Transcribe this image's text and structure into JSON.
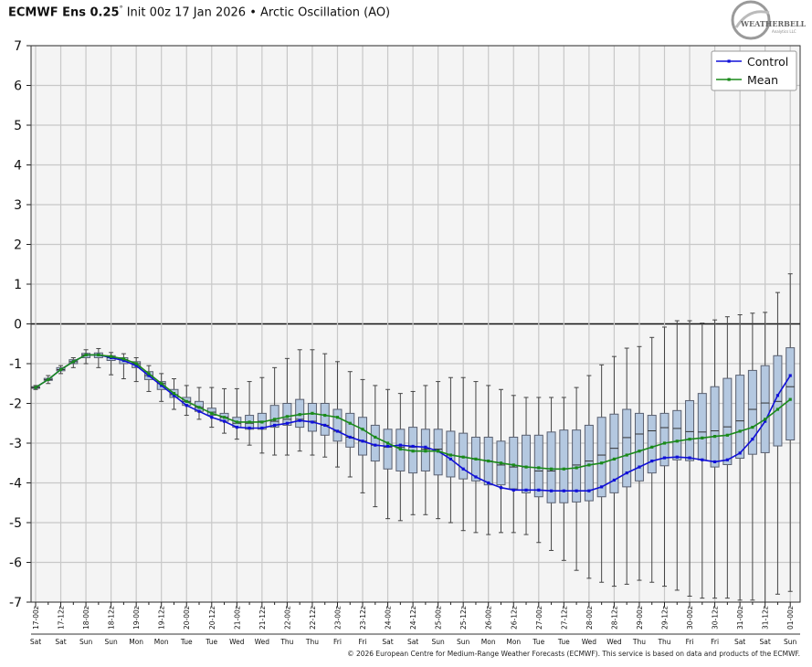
{
  "header": {
    "model": "ECMWF Ens 0.25",
    "degree": "°",
    "init": "Init 00z 17 Jan 2026",
    "bullet": "•",
    "index": "Arctic Oscillation (AO)"
  },
  "logo": {
    "text": "WEATHERBELL",
    "sub": "Analytics LLC"
  },
  "footer": "© 2026 European Centre for Medium-Range Weather Forecasts (ECMWF). This service is based on data and products of the ECMWF.",
  "colors": {
    "control": "#1010d8",
    "mean": "#1a8a1a",
    "box_fill": "#b4c8e0",
    "box_stroke": "#5a6070",
    "plot_bg": "#f4f4f4",
    "grid": "#c8c8c8"
  },
  "chart_data": {
    "type": "boxplot-line",
    "title": "ECMWF Ens 0.25° Init 00z 17 Jan 2026 • Arctic Oscillation (AO)",
    "ylim": [
      -7,
      7
    ],
    "yticks": [
      7,
      6,
      5,
      4,
      3,
      2,
      1,
      0,
      -1,
      -2,
      -3,
      -4,
      -5,
      -6,
      -7
    ],
    "grid": true,
    "legend": {
      "placement": "top-right",
      "entries": [
        "Control",
        "Mean"
      ]
    },
    "x_step_hours": 6,
    "x_labels": [
      "17-00z",
      "17-12z",
      "18-00z",
      "18-12z",
      "19-00z",
      "19-12z",
      "20-00z",
      "20-12z",
      "21-00z",
      "21-12z",
      "22-00z",
      "22-12z",
      "23-00z",
      "23-12z",
      "24-00z",
      "24-12z",
      "25-00z",
      "25-12z",
      "26-00z",
      "26-12z",
      "27-00z",
      "27-12z",
      "28-00z",
      "28-12z",
      "29-00z",
      "29-12z",
      "30-00z",
      "30-12z",
      "31-00z",
      "31-12z",
      "01-00z"
    ],
    "day_labels": [
      "Sat",
      "Sat",
      "Sun",
      "Sun",
      "Mon",
      "Mon",
      "Tue",
      "Tue",
      "Wed",
      "Wed",
      "Thu",
      "Thu",
      "Fri",
      "Fri",
      "Sat",
      "Sat",
      "Sun",
      "Sun",
      "Mon",
      "Mon",
      "Tue",
      "Tue",
      "Wed",
      "Wed",
      "Thu",
      "Thu",
      "Fri",
      "Fri",
      "Sat",
      "Sat",
      "Sun"
    ],
    "series": [
      {
        "name": "Control",
        "values": [
          -1.6,
          -1.4,
          -1.15,
          -0.95,
          -0.78,
          -0.78,
          -0.85,
          -0.92,
          -1.05,
          -1.3,
          -1.55,
          -1.8,
          -2.05,
          -2.2,
          -2.35,
          -2.45,
          -2.6,
          -2.62,
          -2.62,
          -2.55,
          -2.5,
          -2.43,
          -2.47,
          -2.55,
          -2.7,
          -2.85,
          -2.95,
          -3.05,
          -3.08,
          -3.05,
          -3.08,
          -3.1,
          -3.2,
          -3.4,
          -3.65,
          -3.85,
          -4.0,
          -4.12,
          -4.18,
          -4.18,
          -4.18,
          -4.2,
          -4.2,
          -4.2,
          -4.2,
          -4.1,
          -3.93,
          -3.75,
          -3.6,
          -3.45,
          -3.37,
          -3.35,
          -3.37,
          -3.42,
          -3.47,
          -3.42,
          -3.25,
          -2.9,
          -2.45,
          -1.8,
          -1.3
        ]
      },
      {
        "name": "Mean",
        "values": [
          -1.6,
          -1.4,
          -1.15,
          -0.95,
          -0.78,
          -0.78,
          -0.82,
          -0.88,
          -1.0,
          -1.25,
          -1.5,
          -1.75,
          -1.95,
          -2.1,
          -2.25,
          -2.35,
          -2.47,
          -2.47,
          -2.47,
          -2.4,
          -2.33,
          -2.28,
          -2.25,
          -2.3,
          -2.35,
          -2.5,
          -2.65,
          -2.85,
          -3.0,
          -3.15,
          -3.2,
          -3.2,
          -3.2,
          -3.3,
          -3.35,
          -3.4,
          -3.45,
          -3.5,
          -3.55,
          -3.6,
          -3.62,
          -3.65,
          -3.65,
          -3.62,
          -3.55,
          -3.5,
          -3.4,
          -3.3,
          -3.2,
          -3.1,
          -3.0,
          -2.95,
          -2.9,
          -2.87,
          -2.83,
          -2.8,
          -2.7,
          -2.6,
          -2.4,
          -2.15,
          -1.9
        ]
      }
    ],
    "boxes_format": [
      "min",
      "q1",
      "median",
      "q3",
      "max"
    ],
    "boxes": [
      [
        -1.65,
        -1.62,
        -1.6,
        -1.58,
        -1.55
      ],
      [
        -1.5,
        -1.42,
        -1.4,
        -1.37,
        -1.3
      ],
      [
        -1.25,
        -1.18,
        -1.15,
        -1.1,
        -1.05
      ],
      [
        -1.1,
        -1.0,
        -0.95,
        -0.9,
        -0.85
      ],
      [
        -1.0,
        -0.85,
        -0.78,
        -0.74,
        -0.65
      ],
      [
        -1.1,
        -0.85,
        -0.78,
        -0.73,
        -0.62
      ],
      [
        -1.28,
        -0.92,
        -0.85,
        -0.8,
        -0.72
      ],
      [
        -1.38,
        -1.0,
        -0.9,
        -0.85,
        -0.75
      ],
      [
        -1.45,
        -1.1,
        -1.0,
        -0.95,
        -0.85
      ],
      [
        -1.7,
        -1.4,
        -1.3,
        -1.2,
        -1.05
      ],
      [
        -1.95,
        -1.65,
        -1.5,
        -1.45,
        -1.25
      ],
      [
        -2.15,
        -1.85,
        -1.78,
        -1.65,
        -1.38
      ],
      [
        -2.3,
        -2.05,
        -1.95,
        -1.85,
        -1.55
      ],
      [
        -2.4,
        -2.2,
        -2.1,
        -1.95,
        -1.6
      ],
      [
        -2.6,
        -2.3,
        -2.22,
        -2.12,
        -1.6
      ],
      [
        -2.75,
        -2.45,
        -2.35,
        -2.25,
        -1.63
      ],
      [
        -2.9,
        -2.6,
        -2.5,
        -2.35,
        -1.63
      ],
      [
        -3.05,
        -2.65,
        -2.5,
        -2.3,
        -1.45
      ],
      [
        -3.25,
        -2.65,
        -2.45,
        -2.25,
        -1.35
      ],
      [
        -3.3,
        -2.6,
        -2.45,
        -2.05,
        -1.1
      ],
      [
        -3.3,
        -2.55,
        -2.4,
        -2.0,
        -0.87
      ],
      [
        -3.2,
        -2.6,
        -2.4,
        -1.9,
        -0.65
      ],
      [
        -3.3,
        -2.7,
        -2.45,
        -2.0,
        -0.65
      ],
      [
        -3.35,
        -2.8,
        -2.55,
        -2.0,
        -0.75
      ],
      [
        -3.6,
        -2.95,
        -2.7,
        -2.15,
        -0.95
      ],
      [
        -3.85,
        -3.1,
        -2.85,
        -2.25,
        -1.2
      ],
      [
        -4.25,
        -3.3,
        -2.95,
        -2.35,
        -1.4
      ],
      [
        -4.6,
        -3.45,
        -3.05,
        -2.55,
        -1.55
      ],
      [
        -4.9,
        -3.65,
        -3.1,
        -2.65,
        -1.65
      ],
      [
        -4.95,
        -3.7,
        -3.1,
        -2.65,
        -1.75
      ],
      [
        -4.8,
        -3.75,
        -3.1,
        -2.6,
        -1.7
      ],
      [
        -4.8,
        -3.7,
        -3.15,
        -2.65,
        -1.55
      ],
      [
        -4.9,
        -3.8,
        -3.15,
        -2.65,
        -1.45
      ],
      [
        -5.0,
        -3.85,
        -3.3,
        -2.7,
        -1.35
      ],
      [
        -5.2,
        -3.9,
        -3.35,
        -2.75,
        -1.35
      ],
      [
        -5.25,
        -3.95,
        -3.4,
        -2.85,
        -1.45
      ],
      [
        -5.3,
        -4.05,
        -3.45,
        -2.85,
        -1.55
      ],
      [
        -5.25,
        -4.05,
        -3.55,
        -2.95,
        -1.65
      ],
      [
        -5.25,
        -4.15,
        -3.6,
        -2.85,
        -1.8
      ],
      [
        -5.3,
        -4.25,
        -3.6,
        -2.8,
        -1.85
      ],
      [
        -5.5,
        -4.35,
        -3.7,
        -2.8,
        -1.85
      ],
      [
        -5.7,
        -4.5,
        -3.7,
        -2.72,
        -1.85
      ],
      [
        -5.95,
        -4.5,
        -3.65,
        -2.67,
        -1.85
      ],
      [
        -6.2,
        -4.48,
        -3.55,
        -2.67,
        -1.6
      ],
      [
        -6.4,
        -4.45,
        -3.45,
        -2.55,
        -1.3
      ],
      [
        -6.5,
        -4.35,
        -3.3,
        -2.35,
        -1.03
      ],
      [
        -6.6,
        -4.25,
        -3.13,
        -2.27,
        -0.82
      ],
      [
        -6.55,
        -4.1,
        -2.86,
        -2.15,
        -0.61
      ],
      [
        -6.45,
        -3.95,
        -2.77,
        -2.25,
        -0.57
      ],
      [
        -6.5,
        -3.75,
        -2.69,
        -2.3,
        -0.34
      ],
      [
        -6.6,
        -3.57,
        -2.61,
        -2.25,
        -0.08
      ],
      [
        -6.7,
        -3.42,
        -2.63,
        -2.18,
        0.08
      ],
      [
        -6.85,
        -3.44,
        -2.71,
        -1.93,
        0.08
      ],
      [
        -6.9,
        -3.42,
        -2.72,
        -1.75,
        0.02
      ],
      [
        -6.9,
        -3.6,
        -2.69,
        -1.58,
        0.1
      ],
      [
        -6.9,
        -3.54,
        -2.59,
        -1.37,
        0.18
      ],
      [
        -6.95,
        -3.38,
        -2.44,
        -1.29,
        0.23
      ],
      [
        -6.95,
        -3.28,
        -2.15,
        -1.17,
        0.27
      ],
      [
        -7.0,
        -3.24,
        -1.99,
        -1.05,
        0.29
      ],
      [
        -6.8,
        -3.07,
        -1.95,
        -0.8,
        0.79
      ],
      [
        -6.73,
        -2.92,
        -1.58,
        -0.6,
        1.26
      ]
    ]
  }
}
